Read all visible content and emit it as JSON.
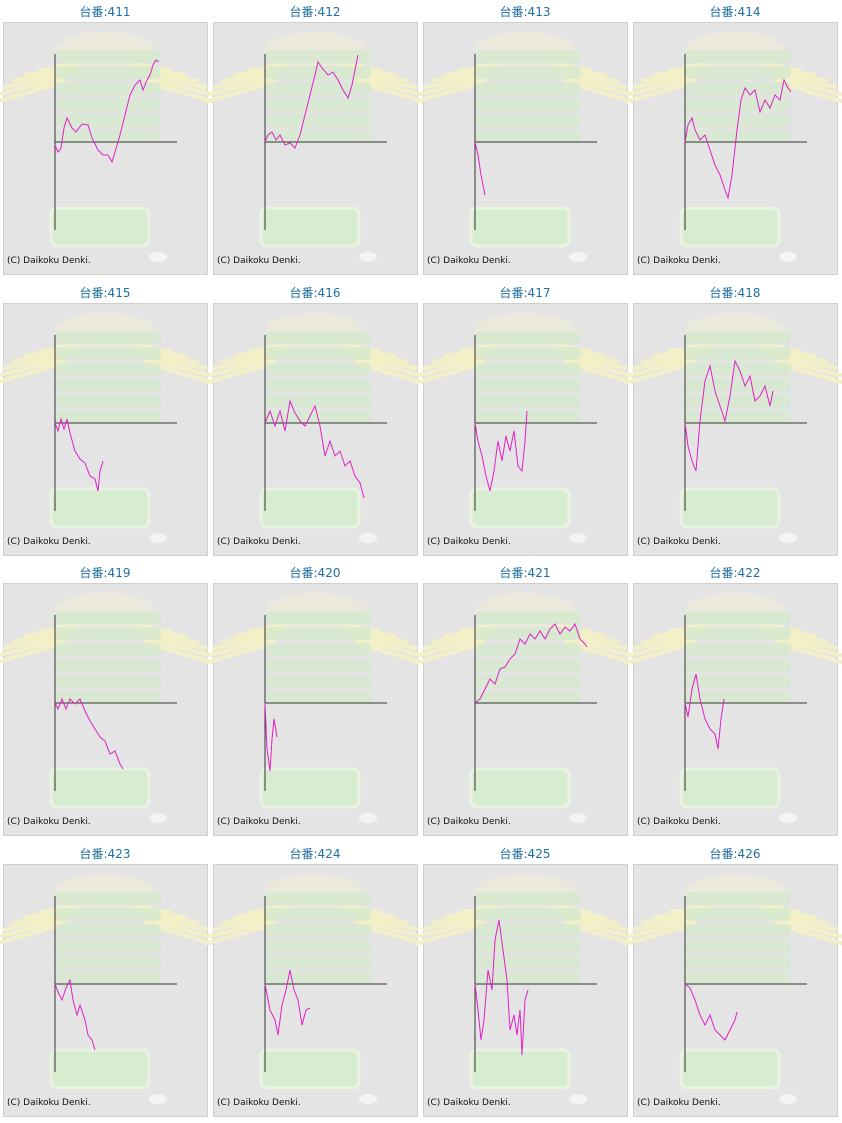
{
  "chart_data": [
    {
      "type": "line",
      "title": "台番:411",
      "annotation": "(C) Daikoku Denki.",
      "color": "#e020c8",
      "xlim": [
        0,
        122
      ],
      "ylim": [
        -88,
        88
      ],
      "x": [
        0,
        3,
        6,
        9,
        12,
        17,
        21,
        27,
        33,
        37,
        43,
        48,
        53,
        57,
        60,
        65,
        70,
        75,
        80,
        85,
        88,
        92,
        95,
        98,
        101,
        104
      ],
      "values": [
        -3,
        -10,
        -6,
        14,
        24,
        14,
        10,
        18,
        17,
        4,
        -8,
        -13,
        -13,
        -20,
        -10,
        7,
        27,
        47,
        57,
        62,
        52,
        62,
        67,
        77,
        82,
        80
      ]
    },
    {
      "type": "line",
      "title": "台番:412",
      "annotation": "(C) Daikoku Denki.",
      "color": "#e020c8",
      "xlim": [
        0,
        122
      ],
      "ylim": [
        -88,
        88
      ],
      "x": [
        0,
        3,
        7,
        11,
        15,
        20,
        25,
        30,
        35,
        40,
        45,
        50,
        53,
        57,
        63,
        68,
        73,
        78,
        83,
        87,
        91,
        93
      ],
      "values": [
        0,
        7,
        10,
        2,
        7,
        -3,
        -1,
        -6,
        7,
        27,
        47,
        67,
        80,
        74,
        67,
        70,
        62,
        52,
        44,
        57,
        77,
        87
      ]
    },
    {
      "type": "line",
      "title": "台番:413",
      "annotation": "(C) Daikoku Denki.",
      "color": "#e020c8",
      "xlim": [
        0,
        122
      ],
      "ylim": [
        -88,
        88
      ],
      "x": [
        0,
        3,
        6,
        10
      ],
      "values": [
        0,
        -13,
        -33,
        -53
      ]
    },
    {
      "type": "line",
      "title": "台番:414",
      "annotation": "(C) Daikoku Denki.",
      "color": "#e020c8",
      "xlim": [
        0,
        122
      ],
      "ylim": [
        -88,
        88
      ],
      "x": [
        0,
        3,
        7,
        10,
        15,
        20,
        25,
        30,
        35,
        40,
        43,
        47,
        52,
        56,
        60,
        65,
        70,
        75,
        80,
        85,
        90,
        95,
        99,
        103,
        106
      ],
      "values": [
        0,
        17,
        24,
        12,
        2,
        7,
        -8,
        -23,
        -33,
        -48,
        -56,
        -33,
        12,
        42,
        54,
        47,
        52,
        30,
        42,
        34,
        47,
        42,
        62,
        54,
        50
      ]
    },
    {
      "type": "line",
      "title": "台番:415",
      "annotation": "(C) Daikoku Denki.",
      "color": "#e020c8",
      "xlim": [
        0,
        122
      ],
      "ylim": [
        -88,
        88
      ],
      "x": [
        0,
        3,
        6,
        9,
        12,
        15,
        20,
        25,
        30,
        35,
        40,
        43,
        45,
        48
      ],
      "values": [
        0,
        -8,
        4,
        -6,
        4,
        -10,
        -28,
        -36,
        -40,
        -53,
        -56,
        -68,
        -48,
        -38
      ]
    },
    {
      "type": "line",
      "title": "台番:416",
      "annotation": "(C) Daikoku Denki.",
      "color": "#e020c8",
      "xlim": [
        0,
        122
      ],
      "ylim": [
        -88,
        88
      ],
      "x": [
        0,
        5,
        10,
        15,
        20,
        25,
        30,
        35,
        40,
        45,
        50,
        55,
        60,
        65,
        70,
        75,
        80,
        85,
        90,
        95,
        99
      ],
      "values": [
        0,
        12,
        -3,
        12,
        -8,
        22,
        10,
        2,
        -3,
        7,
        17,
        -3,
        -33,
        -18,
        -33,
        -28,
        -43,
        -38,
        -53,
        -60,
        -75
      ]
    },
    {
      "type": "line",
      "title": "台番:417",
      "annotation": "(C) Daikoku Denki.",
      "color": "#e020c8",
      "xlim": [
        0,
        122
      ],
      "ylim": [
        -88,
        88
      ],
      "x": [
        0,
        3,
        7,
        11,
        15,
        19,
        23,
        27,
        31,
        35,
        39,
        43,
        47,
        50,
        52
      ],
      "values": [
        0,
        -18,
        -33,
        -53,
        -68,
        -48,
        -18,
        -38,
        -13,
        -28,
        -8,
        -43,
        -48,
        -18,
        12
      ]
    },
    {
      "type": "line",
      "title": "台番:418",
      "annotation": "(C) Daikoku Denki.",
      "color": "#e020c8",
      "xlim": [
        0,
        122
      ],
      "ylim": [
        -88,
        88
      ],
      "x": [
        0,
        3,
        7,
        11,
        15,
        20,
        25,
        30,
        35,
        40,
        45,
        50,
        55,
        60,
        65,
        70,
        75,
        80,
        85,
        88
      ],
      "values": [
        0,
        -23,
        -38,
        -48,
        2,
        42,
        57,
        32,
        17,
        2,
        27,
        62,
        52,
        37,
        47,
        22,
        27,
        37,
        17,
        32
      ]
    },
    {
      "type": "line",
      "title": "台番:419",
      "annotation": "(C) Daikoku Denki.",
      "color": "#e020c8",
      "xlim": [
        0,
        122
      ],
      "ylim": [
        -88,
        88
      ],
      "x": [
        0,
        3,
        7,
        11,
        15,
        20,
        25,
        30,
        35,
        40,
        45,
        50,
        55,
        60,
        65,
        68
      ],
      "values": [
        0,
        -6,
        4,
        -6,
        4,
        -1,
        4,
        -8,
        -18,
        -26,
        -34,
        -38,
        -51,
        -48,
        -61,
        -66
      ]
    },
    {
      "type": "line",
      "title": "台番:420",
      "annotation": "(C) Daikoku Denki.",
      "color": "#e020c8",
      "xlim": [
        0,
        122
      ],
      "ylim": [
        -88,
        88
      ],
      "x": [
        0,
        2,
        5,
        7,
        9,
        12
      ],
      "values": [
        0,
        -46,
        -68,
        -36,
        -16,
        -34
      ]
    },
    {
      "type": "line",
      "title": "台番:421",
      "annotation": "(C) Daikoku Denki.",
      "color": "#e020c8",
      "xlim": [
        0,
        122
      ],
      "ylim": [
        -88,
        88
      ],
      "x": [
        0,
        5,
        10,
        15,
        20,
        25,
        30,
        35,
        40,
        45,
        50,
        55,
        60,
        65,
        70,
        75,
        80,
        85,
        90,
        95,
        100,
        105,
        110,
        112
      ],
      "values": [
        0,
        4,
        14,
        24,
        19,
        34,
        36,
        44,
        49,
        64,
        59,
        69,
        64,
        72,
        64,
        74,
        79,
        69,
        76,
        72,
        79,
        64,
        59,
        56
      ]
    },
    {
      "type": "line",
      "title": "台番:422",
      "annotation": "(C) Daikoku Denki.",
      "color": "#e020c8",
      "xlim": [
        0,
        122
      ],
      "ylim": [
        -88,
        88
      ],
      "x": [
        0,
        3,
        7,
        11,
        15,
        20,
        25,
        30,
        33,
        36,
        39
      ],
      "values": [
        0,
        -14,
        14,
        29,
        4,
        -16,
        -26,
        -31,
        -46,
        -16,
        4
      ]
    },
    {
      "type": "line",
      "title": "台番:423",
      "annotation": "(C) Daikoku Denki.",
      "color": "#e020c8",
      "xlim": [
        0,
        122
      ],
      "ylim": [
        -88,
        88
      ],
      "x": [
        0,
        3,
        7,
        11,
        15,
        18,
        22,
        25,
        30,
        33,
        37,
        40
      ],
      "values": [
        0,
        -8,
        -16,
        -4,
        4,
        -16,
        -31,
        -21,
        -36,
        -51,
        -56,
        -66
      ]
    },
    {
      "type": "line",
      "title": "台番:424",
      "annotation": "(C) Daikoku Denki.",
      "color": "#e020c8",
      "xlim": [
        0,
        122
      ],
      "ylim": [
        -88,
        88
      ],
      "x": [
        0,
        5,
        10,
        13,
        17,
        21,
        25,
        29,
        33,
        37,
        41,
        45
      ],
      "values": [
        0,
        -26,
        -36,
        -51,
        -21,
        -6,
        14,
        -6,
        -16,
        -41,
        -26,
        -24
      ]
    },
    {
      "type": "line",
      "title": "台番:425",
      "annotation": "(C) Daikoku Denki.",
      "color": "#e020c8",
      "xlim": [
        0,
        122
      ],
      "ylim": [
        -88,
        88
      ],
      "x": [
        0,
        3,
        6,
        9,
        13,
        17,
        20,
        24,
        28,
        32,
        35,
        39,
        42,
        45,
        47,
        50,
        53
      ],
      "values": [
        0,
        -26,
        -56,
        -36,
        14,
        -6,
        44,
        64,
        34,
        4,
        -46,
        -31,
        -51,
        -26,
        -71,
        -16,
        -6
      ]
    },
    {
      "type": "line",
      "title": "台番:426",
      "annotation": "(C) Daikoku Denki.",
      "color": "#e020c8",
      "xlim": [
        0,
        122
      ],
      "ylim": [
        -88,
        88
      ],
      "x": [
        0,
        5,
        10,
        15,
        20,
        25,
        30,
        35,
        40,
        45,
        50,
        52
      ],
      "values": [
        0,
        -4,
        -16,
        -31,
        -41,
        -31,
        -46,
        -51,
        -56,
        -46,
        -36,
        -28
      ]
    }
  ]
}
